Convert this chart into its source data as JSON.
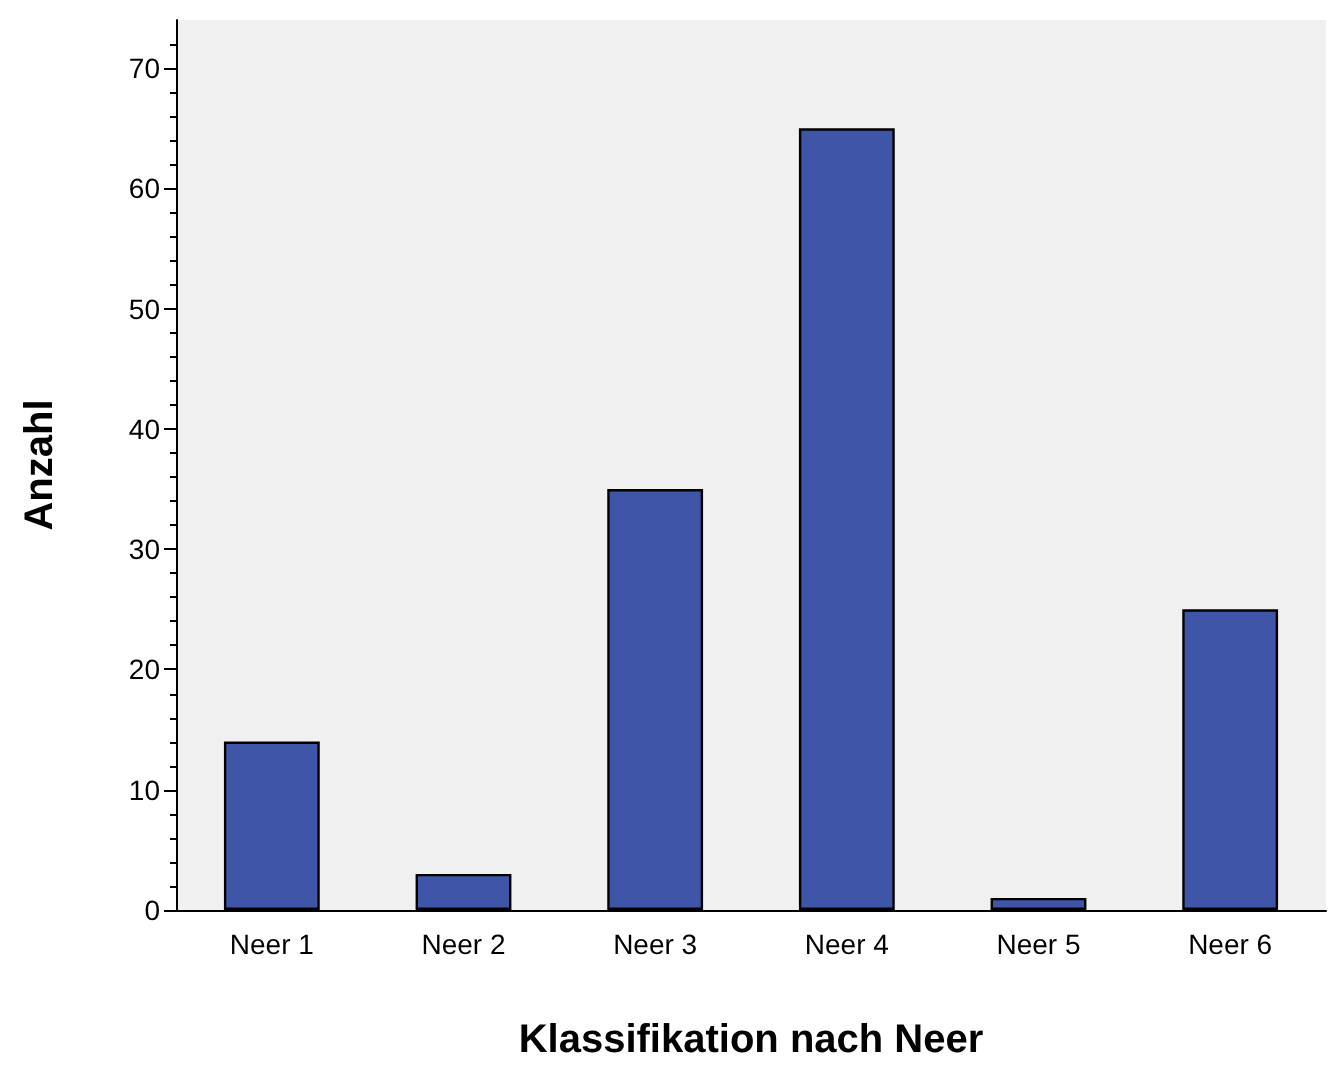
{
  "chart_data": {
    "type": "bar",
    "xlabel": "Klassifikation nach Neer",
    "ylabel": "Anzahl",
    "categories": [
      "Neer 1",
      "Neer 2",
      "Neer 3",
      "Neer 4",
      "Neer 5",
      "Neer 6"
    ],
    "values": [
      14,
      3,
      35,
      65,
      1,
      25
    ],
    "color": "#3f56a8",
    "ylim": [
      0,
      74
    ],
    "yticks": [
      0,
      10,
      20,
      30,
      40,
      50,
      60,
      70
    ],
    "grid": false
  }
}
